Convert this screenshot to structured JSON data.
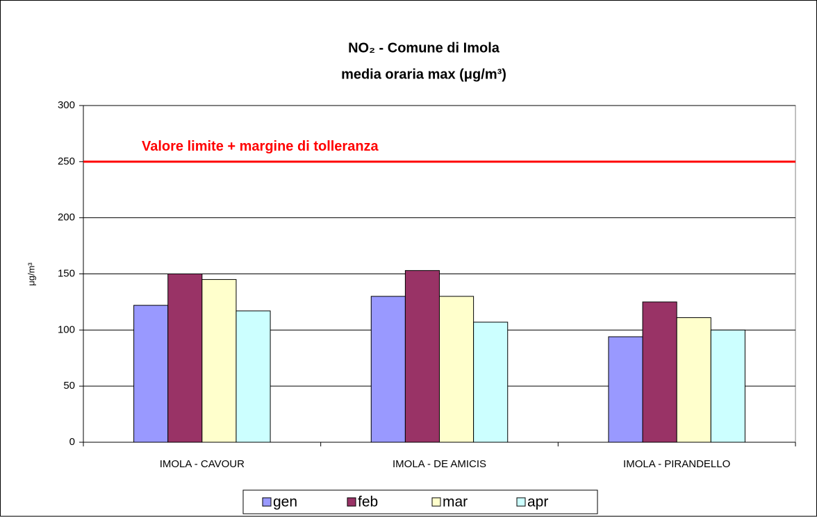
{
  "chart_data": {
    "type": "bar",
    "title": "NO₂ - Comune di Imola",
    "subtitle": "media oraria max  (μg/m³)",
    "y_label": "μg/m³",
    "categories": [
      "IMOLA - CAVOUR",
      "IMOLA - DE AMICIS",
      "IMOLA - PIRANDELLO"
    ],
    "series": [
      {
        "name": "gen",
        "color": "#9999ff",
        "values": [
          122,
          130,
          94
        ]
      },
      {
        "name": "feb",
        "color": "#993366",
        "values": [
          150,
          153,
          125
        ]
      },
      {
        "name": "mar",
        "color": "#ffffcc",
        "values": [
          145,
          130,
          111
        ]
      },
      {
        "name": "apr",
        "color": "#ccffff",
        "values": [
          117,
          107,
          100
        ]
      }
    ],
    "reference_line": {
      "value": 250,
      "label": "Valore limite + margine di tolleranza",
      "color": "#ff0000"
    },
    "ylim": [
      0,
      300
    ],
    "yticks": [
      0,
      50,
      100,
      150,
      200,
      250,
      300
    ],
    "grid": true,
    "legend": "bottom"
  }
}
